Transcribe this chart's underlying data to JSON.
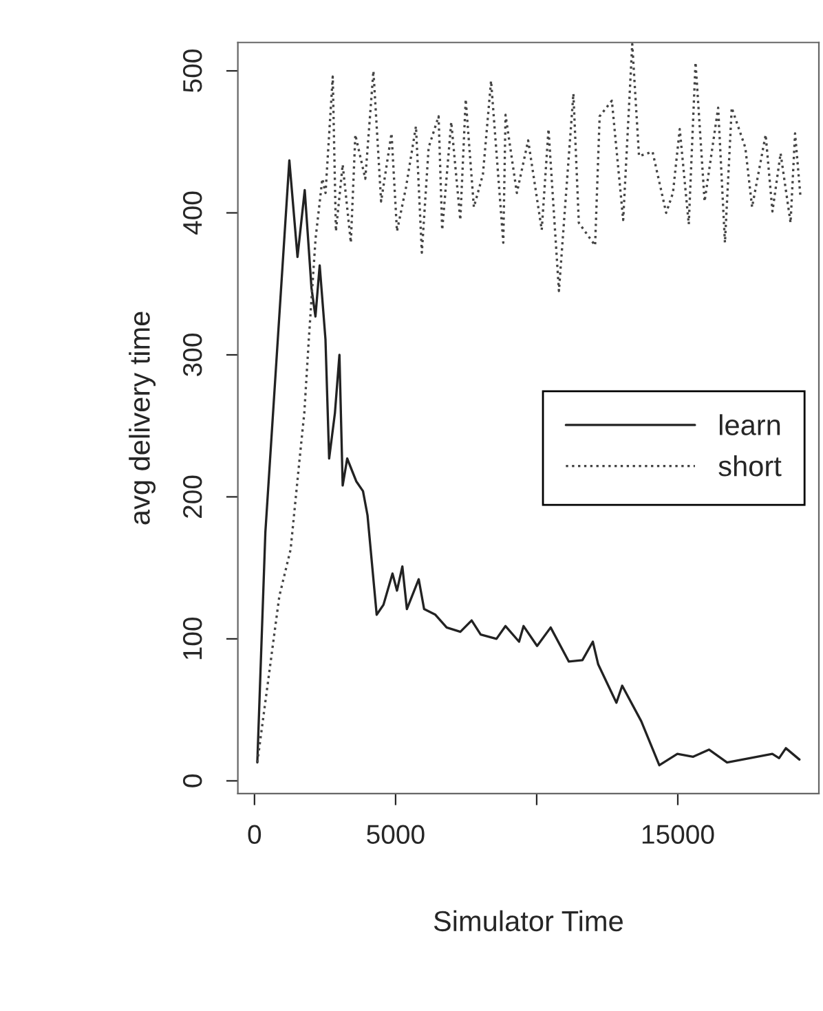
{
  "chart_data": {
    "type": "line",
    "xlabel": "Simulator Time",
    "ylabel": "avg delivery time",
    "xlim": [
      -590,
      20000
    ],
    "ylim": [
      -9,
      520
    ],
    "xticks": [
      0,
      5000,
      {
        "value": 10000,
        "label": null
      },
      15000
    ],
    "yticks": [
      0,
      100,
      200,
      300,
      400,
      500
    ],
    "grid": false,
    "legend": "right",
    "series": [
      {
        "name": "learn",
        "color": "#222222",
        "line_style": "solid",
        "x": [
          100,
          385,
          1235,
          1524,
          1780,
          2020,
          2160,
          2310,
          2515,
          2645,
          2850,
          3010,
          3125,
          3285,
          3605,
          3845,
          4005,
          4330,
          4570,
          4890,
          5050,
          5240,
          5400,
          5820,
          6010,
          6410,
          6810,
          7295,
          7695,
          8015,
          8575,
          8895,
          9375,
          9535,
          10015,
          10495,
          11140,
          11620,
          11990,
          12180,
          12825,
          13030,
          13705,
          14345,
          14985,
          15545,
          16105,
          16745,
          17550,
          18350,
          18590,
          18830,
          19310
        ],
        "values": [
          13,
          175,
          437,
          369,
          416,
          347,
          327,
          363,
          311,
          227,
          259,
          300,
          208,
          227,
          211,
          204,
          187,
          117,
          124,
          146,
          134,
          151,
          121,
          142,
          121,
          117,
          108,
          105,
          113,
          103,
          100,
          109,
          98,
          109,
          95,
          108,
          84,
          85,
          98,
          82,
          55,
          67,
          42,
          11,
          19,
          17,
          22,
          13,
          16,
          19,
          16,
          23,
          15
        ]
      },
      {
        "name": "short",
        "color": "#444444",
        "line_style": "dotted",
        "x": [
          100,
          560,
          880,
          1280,
          1600,
          1765,
          1925,
          2165,
          2404,
          2517,
          2773,
          2885,
          3125,
          3414,
          3574,
          3926,
          4214,
          4487,
          4856,
          5049,
          5369,
          5722,
          5930,
          6171,
          6524,
          6651,
          6972,
          7293,
          7485,
          7774,
          8094,
          8383,
          8816,
          8896,
          9297,
          9698,
          10179,
          10419,
          10788,
          11301,
          11493,
          12070,
          12231,
          12664,
          13065,
          13386,
          13626,
          14107,
          14588,
          14828,
          15069,
          15389,
          15629,
          15950,
          16431,
          16671,
          16912,
          17393,
          17633,
          18114,
          18354,
          18643,
          18996,
          19156,
          19349
        ],
        "values": [
          13,
          82,
          130,
          163,
          227,
          259,
          311,
          382,
          424,
          414,
          496,
          387,
          434,
          379,
          455,
          424,
          500,
          408,
          456,
          387,
          418,
          461,
          372,
          446,
          468,
          388,
          464,
          395,
          480,
          404,
          427,
          493,
          379,
          469,
          414,
          451,
          388,
          459,
          345,
          484,
          393,
          377,
          468,
          479,
          395,
          519,
          440,
          443,
          400,
          414,
          459,
          392,
          506,
          408,
          474,
          379,
          474,
          446,
          404,
          455,
          401,
          442,
          393,
          456,
          411
        ]
      }
    ]
  }
}
